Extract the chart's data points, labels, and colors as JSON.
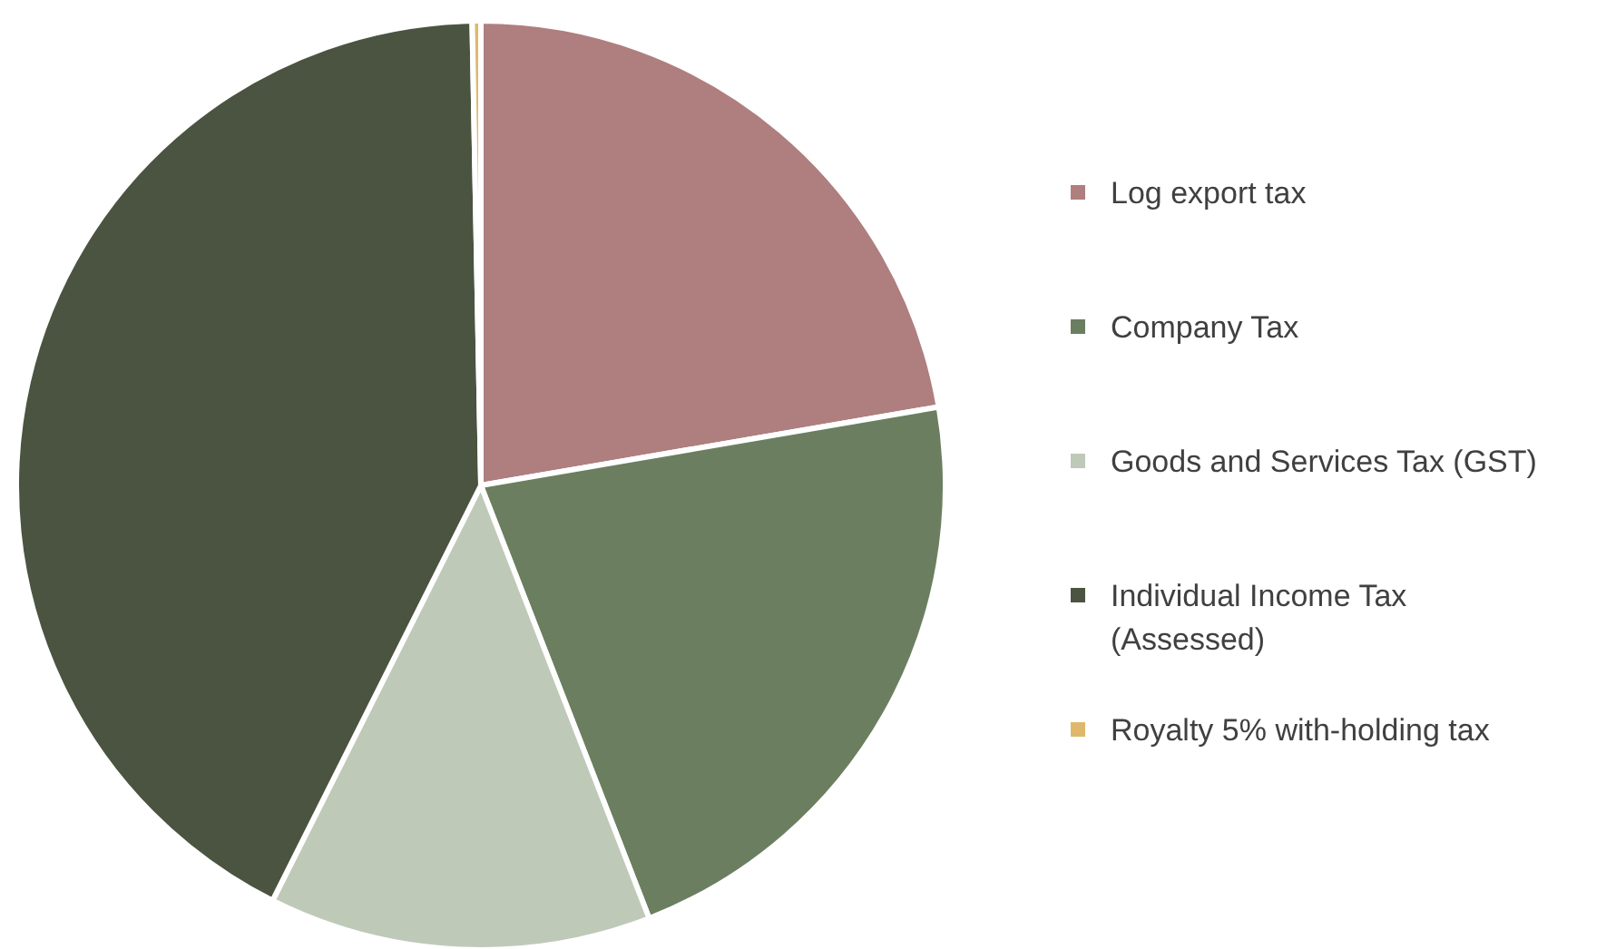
{
  "chart_data": {
    "type": "pie",
    "categories": [
      "Log export tax",
      "Company Tax",
      "Goods and Services Tax (GST)",
      "Individual Income Tax (Assessed)",
      "Royalty 5% with-holding tax"
    ],
    "values": [
      22.3,
      21.8,
      13.3,
      42.3,
      0.3
    ],
    "colors": [
      "#ae7f7e",
      "#6b7f60",
      "#bfc9b8",
      "#4a5440",
      "#e0b86c"
    ],
    "legend": "right"
  }
}
